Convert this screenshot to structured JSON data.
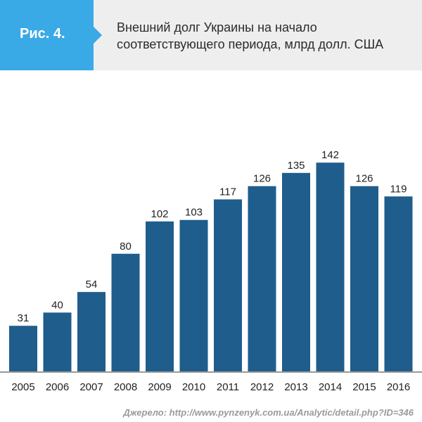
{
  "header": {
    "badge": "Рис. 4.",
    "title_line1": "Внешний долг Украины на начало",
    "title_line2": "соответствующего периода, млрд долл. США"
  },
  "source": "Джерело: http://www.pynzenyk.com.ua/Analytic/detail.php?ID=346",
  "colors": {
    "bar": "#1f5d8c",
    "badge": "#3aaae6",
    "header_bg": "#eeeeee"
  },
  "chart_data": {
    "type": "bar",
    "categories": [
      "2005",
      "2006",
      "2007",
      "2008",
      "2009",
      "2010",
      "2011",
      "2012",
      "2013",
      "2014",
      "2015",
      "2016"
    ],
    "values": [
      31,
      40,
      54,
      80,
      102,
      103,
      117,
      126,
      135,
      142,
      126,
      119
    ],
    "title": "Внешний долг Украины на начало соответствующего периода, млрд долл. США",
    "xlabel": "",
    "ylabel": "",
    "ylim": [
      0,
      150
    ],
    "grid": false,
    "legend": "none"
  }
}
